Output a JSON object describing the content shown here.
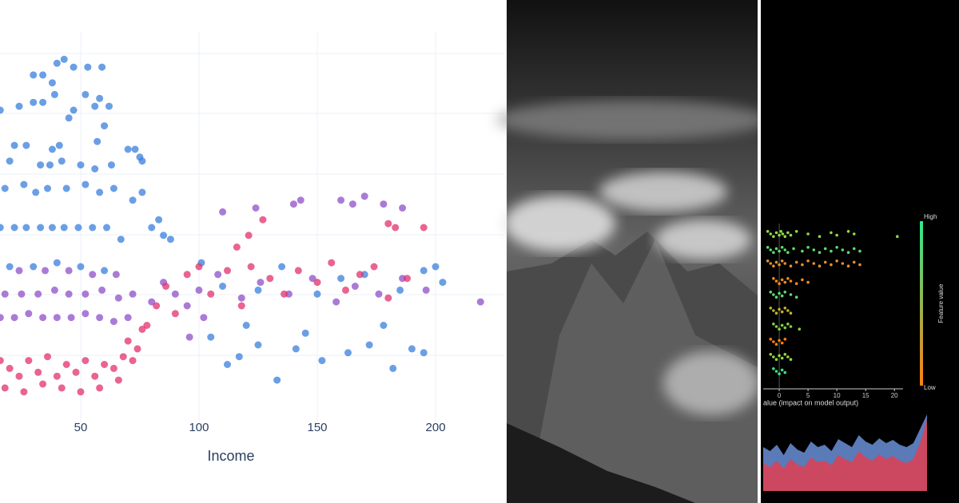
{
  "chart_data": [
    {
      "type": "scatter",
      "xlabel": "Income",
      "xlim": [
        15.9,
        228.7
      ],
      "ylim": [
        0,
        100
      ],
      "xticks": [
        50,
        100,
        150,
        200
      ],
      "grid": true,
      "series": [
        {
          "color": "#3a7fdc",
          "x": [
            40,
            43,
            47,
            53,
            59,
            30,
            34,
            38,
            52,
            58,
            16,
            24,
            30,
            34,
            39,
            47,
            56,
            62,
            60,
            45,
            22,
            27,
            38,
            41,
            57,
            70,
            73,
            75,
            76,
            20,
            33,
            37,
            42,
            50,
            56,
            63,
            18,
            26,
            31,
            36,
            44,
            52,
            58,
            64,
            76,
            72,
            16,
            22,
            27,
            33,
            38,
            43,
            49,
            55,
            61,
            67,
            80,
            83,
            85,
            88,
            20,
            30,
            40,
            50,
            60,
            112,
            117,
            125,
            133,
            141,
            152,
            163,
            172,
            182,
            190,
            195,
            105,
            120,
            145,
            178,
            200,
            195,
            160,
            135,
            110,
            150,
            185,
            125,
            170,
            101,
            203
          ],
          "values": [
            92,
            93,
            91,
            91,
            91,
            89,
            89,
            87,
            84,
            83,
            80,
            81,
            82,
            82,
            84,
            80,
            81,
            81,
            76,
            78,
            71,
            71,
            70,
            71,
            72,
            70,
            70,
            68,
            67,
            67,
            66,
            66,
            67,
            66,
            65,
            66,
            60,
            61,
            59,
            60,
            60,
            61,
            59,
            60,
            59,
            57,
            50,
            50,
            50,
            50,
            50,
            50,
            50,
            50,
            50,
            47,
            50,
            52,
            48,
            47,
            40,
            40,
            41,
            40,
            39,
            15,
            17,
            20,
            11,
            19,
            16,
            18,
            20,
            14,
            19,
            18,
            22,
            25,
            23,
            25,
            40,
            39,
            37,
            40,
            35,
            33,
            34,
            34,
            38,
            41,
            36
          ]
        },
        {
          "color": "#8e4fc8",
          "x": [
            16,
            22,
            28,
            34,
            40,
            46,
            52,
            58,
            64,
            70,
            18,
            25,
            32,
            39,
            45,
            52,
            59,
            66,
            72,
            24,
            35,
            45,
            55,
            65,
            80,
            85,
            90,
            95,
            100,
            108,
            118,
            126,
            138,
            148,
            158,
            166,
            176,
            186,
            196,
            219,
            124,
            140,
            143,
            160,
            165,
            170,
            178,
            186,
            110,
            96,
            102
          ],
          "values": [
            27,
            27,
            28,
            27,
            27,
            27,
            28,
            27,
            26,
            27,
            33,
            33,
            33,
            34,
            33,
            33,
            34,
            32,
            33,
            39,
            39,
            39,
            38,
            38,
            31,
            36,
            33,
            30,
            34,
            38,
            32,
            36,
            33,
            37,
            31,
            35,
            33,
            37,
            34,
            31,
            55,
            56,
            57,
            57,
            56,
            58,
            56,
            55,
            54,
            22,
            27
          ]
        },
        {
          "color": "#e2306b",
          "x": [
            16,
            20,
            24,
            28,
            32,
            36,
            40,
            44,
            48,
            52,
            56,
            60,
            64,
            68,
            72,
            18,
            26,
            34,
            42,
            50,
            58,
            66,
            74,
            78,
            82,
            86,
            90,
            95,
            100,
            105,
            112,
            118,
            122,
            130,
            136,
            142,
            150,
            156,
            162,
            168,
            174,
            180,
            188,
            121,
            127,
            180,
            195,
            183,
            116,
            70,
            76
          ],
          "values": [
            16,
            14,
            12,
            16,
            13,
            17,
            12,
            15,
            13,
            16,
            12,
            15,
            14,
            17,
            16,
            9,
            8,
            10,
            9,
            8,
            9,
            11,
            19,
            25,
            30,
            35,
            28,
            38,
            40,
            33,
            39,
            30,
            40,
            37,
            33,
            39,
            36,
            41,
            34,
            38,
            40,
            32,
            37,
            48,
            52,
            51,
            50,
            50,
            45,
            21,
            24
          ]
        }
      ]
    },
    {
      "type": "beeswarm",
      "xlabel": "alue (impact on model output)",
      "xlim": [
        -3.2,
        21.5
      ],
      "xticks": [
        0,
        5,
        10,
        15,
        20
      ],
      "colorbar": {
        "high": "High",
        "low": "Low",
        "label": "Feature value",
        "colors": [
          "#2ee88f",
          "#ff7f0e"
        ]
      },
      "series": [
        {
          "color": "#8fd84a",
          "values": [
            -2,
            -1.5,
            -1,
            -0.5,
            0,
            0.3,
            0.6,
            1,
            1.5,
            2,
            3,
            5,
            7,
            9,
            10,
            12,
            13,
            20.5
          ]
        },
        {
          "color": "#5fd86a",
          "values": [
            -2,
            -1.5,
            -1,
            -0.5,
            0,
            0.5,
            1,
            1.5,
            2.5,
            4,
            5,
            6,
            7,
            8,
            9,
            10,
            11,
            12,
            13,
            14
          ]
        },
        {
          "color": "#e09030",
          "values": [
            -2,
            -1.5,
            -1,
            -0.5,
            0,
            0.5,
            1,
            2,
            3,
            4,
            5,
            6,
            7,
            8,
            9,
            10,
            11,
            12,
            13,
            14
          ]
        },
        {
          "color": "#f08a20",
          "values": [
            -1,
            -0.5,
            0,
            0.5,
            1,
            1.5,
            2,
            3,
            4,
            5
          ]
        },
        {
          "color": "#60d870",
          "values": [
            -1.5,
            -1,
            -0.5,
            0,
            0.5,
            1,
            2,
            3
          ]
        },
        {
          "color": "#c0b030",
          "values": [
            -1.5,
            -1,
            -0.5,
            0,
            0.5,
            1,
            1.5,
            2
          ]
        },
        {
          "color": "#7fd040",
          "values": [
            -1,
            -0.5,
            0,
            0.5,
            1,
            1.5,
            2,
            3.5
          ]
        },
        {
          "color": "#ff7f0e",
          "values": [
            -1.5,
            -1,
            -0.5,
            0,
            0.5,
            1
          ]
        },
        {
          "color": "#90d840",
          "values": [
            -1.5,
            -1,
            -0.5,
            0,
            0.5,
            1,
            1.5,
            2
          ]
        },
        {
          "color": "#40e080",
          "values": [
            -1,
            -0.5,
            0,
            0.5,
            1
          ]
        }
      ]
    },
    {
      "type": "area",
      "ylim": [
        0,
        100
      ],
      "series": [
        {
          "color": "#6a8fd8",
          "values": [
            55,
            50,
            58,
            45,
            60,
            52,
            48,
            62,
            55,
            58,
            50,
            65,
            60,
            55,
            70,
            62,
            58,
            66,
            60,
            64,
            58,
            55,
            60,
            78,
            96
          ]
        },
        {
          "color": "#e04050",
          "values": [
            35,
            30,
            38,
            28,
            40,
            33,
            30,
            42,
            36,
            38,
            32,
            45,
            40,
            36,
            50,
            42,
            38,
            46,
            40,
            44,
            38,
            35,
            40,
            60,
            90
          ]
        }
      ]
    }
  ]
}
